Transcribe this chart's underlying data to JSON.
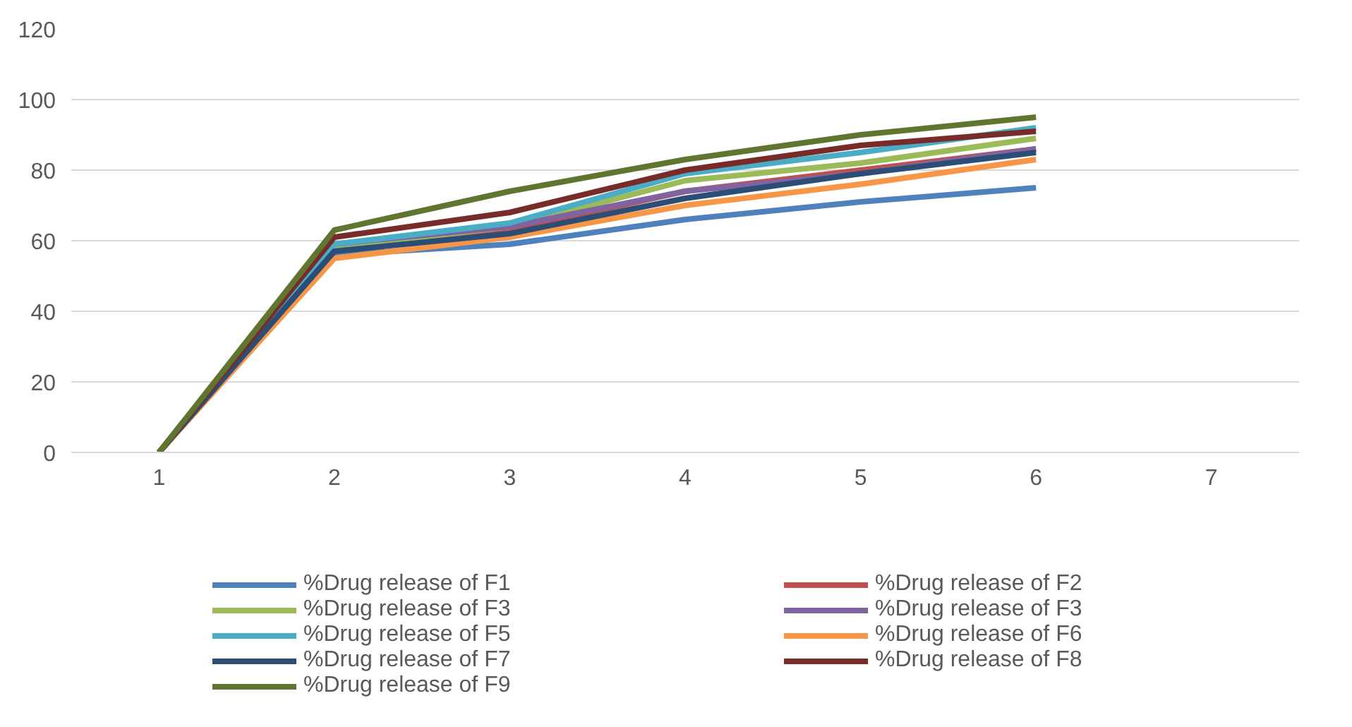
{
  "chart_data": {
    "type": "line",
    "categories": [
      "1",
      "2",
      "3",
      "4",
      "5",
      "6",
      "7"
    ],
    "ylim": [
      0,
      120
    ],
    "yticks": [
      0,
      20,
      40,
      60,
      80,
      100,
      120
    ],
    "grid": "y",
    "legend": "bottom",
    "marker": "none",
    "line_style": "solid",
    "series": [
      {
        "name": "%Drug release of F1",
        "color": "#4f81bd",
        "values": [
          0,
          56,
          59,
          66,
          71,
          75,
          null
        ]
      },
      {
        "name": "%Drug release of F2",
        "color": "#c0504d",
        "values": [
          0,
          58,
          63,
          74,
          80,
          86,
          null
        ]
      },
      {
        "name": "%Drug release of F3",
        "color": "#9bbb59",
        "values": [
          0,
          58,
          64,
          77,
          82,
          89,
          null
        ]
      },
      {
        "name": "%Drug release of F3",
        "color": "#8064a2",
        "values": [
          0,
          59,
          64,
          74,
          79,
          86,
          null
        ]
      },
      {
        "name": "%Drug release of F5",
        "color": "#4bacc6",
        "values": [
          0,
          59,
          65,
          79,
          85,
          92,
          null
        ]
      },
      {
        "name": "%Drug release of F6",
        "color": "#f79646",
        "values": [
          0,
          55,
          61,
          70,
          76,
          83,
          null
        ]
      },
      {
        "name": "%Drug release of F7",
        "color": "#2c4d75",
        "values": [
          0,
          57,
          62,
          72,
          79,
          85,
          null
        ]
      },
      {
        "name": "%Drug release of F8",
        "color": "#772c2a",
        "values": [
          0,
          61,
          68,
          80,
          87,
          91,
          null
        ]
      },
      {
        "name": "%Drug release of F9",
        "color": "#5f7530",
        "values": [
          0,
          63,
          74,
          83,
          90,
          95,
          null
        ]
      }
    ]
  }
}
